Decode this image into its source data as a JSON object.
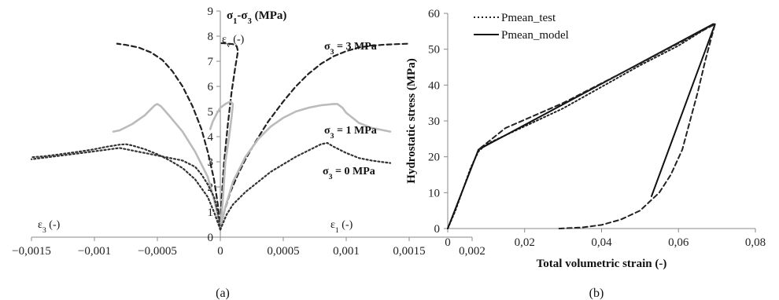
{
  "chart_data": [
    {
      "type": "line",
      "panel_label": "(a)",
      "title": "",
      "ylabel": "σ1-σ3 (MPa)",
      "xlim": [
        -0.0015,
        0.002
      ],
      "ylim": [
        0,
        9
      ],
      "x_ticks": [
        "−0,0015",
        "−0,001",
        "−0,0005",
        "0",
        "0,0005",
        "0,001",
        "0,0015",
        "0,002"
      ],
      "y_ticks": [
        "0",
        "1",
        "2",
        "3",
        "4",
        "5",
        "6",
        "7",
        "8",
        "9"
      ],
      "grid": false,
      "axis_labels": {
        "eps3": "ε3 (-)",
        "eps1": "ε1 (-)",
        "epsv": "εv (-)"
      },
      "series": [
        {
          "name": "σ3 = 3 MPa",
          "color": "#222222",
          "dash": "dashed",
          "branches": [
            {
              "x": [
                0,
                3e-05,
                8e-05,
                0.00014,
                0.0002,
                0.00028,
                0.00038,
                0.0005,
                0.0006,
                0.0007,
                0.0008,
                0.0009,
                0.001,
                0.0011,
                0.0012,
                0.0013,
                0.0014,
                0.0015
              ],
              "y": [
                0.3,
                1.0,
                1.8,
                2.5,
                3.1,
                3.8,
                4.6,
                5.4,
                6.0,
                6.5,
                6.9,
                7.2,
                7.4,
                7.55,
                7.62,
                7.66,
                7.68,
                7.7
              ]
            },
            {
              "x": [
                0,
                -2e-05,
                -5e-05,
                -0.0001,
                -0.00015,
                -0.00022,
                -0.0003,
                -0.00038,
                -0.00046,
                -0.00055,
                -0.00065,
                -0.00075,
                -0.00082
              ],
              "y": [
                0.3,
                1.3,
                2.3,
                3.4,
                4.3,
                5.2,
                6.0,
                6.6,
                7.05,
                7.35,
                7.55,
                7.65,
                7.7
              ]
            },
            {
              "x": [
                0,
                1e-05,
                3e-05,
                6e-05,
                9e-05,
                0.00012,
                0.00014,
                0.00013,
                0.0001,
                6e-05,
                3e-05,
                1e-05
              ],
              "y": [
                0.3,
                1.5,
                3.0,
                4.5,
                5.8,
                6.8,
                7.4,
                7.6,
                7.68,
                7.7,
                7.72,
                7.72
              ]
            }
          ]
        },
        {
          "name": "σ3 = 1 MPa",
          "color": "#bbbbbb",
          "dash": "solid",
          "branches": [
            {
              "x": [
                0,
                4e-05,
                0.0001,
                0.0002,
                0.0003,
                0.0004,
                0.0005,
                0.0006,
                0.0007,
                0.0008,
                0.0009,
                0.00093,
                0.00097,
                0.001,
                0.00105,
                0.0011,
                0.0012,
                0.0013,
                0.00135
              ],
              "y": [
                0.3,
                1.2,
                2.2,
                3.2,
                3.9,
                4.4,
                4.75,
                5.0,
                5.15,
                5.25,
                5.3,
                5.3,
                5.15,
                4.95,
                4.75,
                4.55,
                4.35,
                4.25,
                4.2
              ]
            },
            {
              "x": [
                0,
                -4e-05,
                -0.0001,
                -0.0002,
                -0.0003,
                -0.0004,
                -0.00047,
                -0.0005,
                -0.00052,
                -0.00055,
                -0.0006,
                -0.0007,
                -0.0008,
                -0.00085
              ],
              "y": [
                0.3,
                1.3,
                2.4,
                3.4,
                4.2,
                4.8,
                5.2,
                5.3,
                5.25,
                5.1,
                4.85,
                4.5,
                4.25,
                4.2
              ]
            },
            {
              "x": [
                0,
                2e-05,
                4e-05,
                7e-05,
                9e-05,
                0.0001,
                8e-05,
                4e-05,
                0.0,
                -3e-05,
                -6e-05,
                -8e-05
              ],
              "y": [
                0.3,
                1.5,
                3.0,
                4.0,
                4.8,
                5.3,
                5.4,
                5.3,
                5.15,
                4.9,
                4.6,
                4.3
              ]
            }
          ]
        },
        {
          "name": "σ3 = 0 MPa",
          "color": "#333333",
          "dash": "dotted",
          "branches": [
            {
              "x": [
                0,
                5e-05,
                0.0001,
                0.0002,
                0.0003,
                0.0004,
                0.0005,
                0.0006,
                0.0007,
                0.0008,
                0.00085,
                0.0009,
                0.001,
                0.0011,
                0.0012,
                0.0013,
                0.00135
              ],
              "y": [
                0.3,
                0.9,
                1.3,
                1.8,
                2.2,
                2.6,
                2.9,
                3.2,
                3.45,
                3.7,
                3.75,
                3.6,
                3.35,
                3.15,
                3.05,
                2.98,
                2.95
              ]
            },
            {
              "x": [
                0,
                -5e-05,
                -0.0001,
                -0.0002,
                -0.0003,
                -0.0004,
                -0.0005,
                -0.0006,
                -0.0007,
                -0.00075,
                -0.0008,
                -0.0009,
                -0.001,
                -0.0011,
                -0.0012,
                -0.0013,
                -0.0014,
                -0.0015
              ],
              "y": [
                0.3,
                1.0,
                1.6,
                2.3,
                2.75,
                3.05,
                3.3,
                3.5,
                3.65,
                3.7,
                3.68,
                3.6,
                3.5,
                3.42,
                3.35,
                3.28,
                3.22,
                3.18
              ]
            },
            {
              "x": [
                0,
                -2e-05,
                -5e-05,
                -0.0001,
                -0.00015,
                -0.0002,
                -0.0003,
                -0.0005,
                -0.0008,
                -0.0011,
                -0.0015
              ],
              "y": [
                0.3,
                1.0,
                1.6,
                2.1,
                2.5,
                2.8,
                3.05,
                3.25,
                3.55,
                3.35,
                3.1
              ]
            }
          ]
        }
      ],
      "annotations": [
        {
          "text": "σ3 = 3 MPa",
          "x": 0.00165,
          "y": 7.6
        },
        {
          "text": "σ3 = 1 MPa",
          "x": 0.00165,
          "y": 4.2
        },
        {
          "text": "σ3 = 0 MPa",
          "x": 0.00165,
          "y": 2.8
        }
      ]
    },
    {
      "type": "line",
      "panel_label": "(b)",
      "title": "",
      "xlabel": "Total volumetric strain (-)",
      "ylabel": "Hydrostatic stress (MPa)",
      "xlim": [
        0,
        0.08
      ],
      "ylim": [
        0,
        60
      ],
      "x_ticks": [
        "0",
        "0,02",
        "0,04",
        "0,06",
        "0,08"
      ],
      "y_ticks": [
        "0",
        "10",
        "20",
        "30",
        "40",
        "50",
        "60"
      ],
      "grid": false,
      "legend_position": "top-left",
      "series": [
        {
          "name": "Pmean_test",
          "color": "#222222",
          "dash": "dotted",
          "x": [
            0,
            0.002,
            0.004,
            0.006,
            0.008,
            0.01,
            0.02,
            0.03,
            0.04,
            0.05,
            0.06,
            0.069
          ],
          "y": [
            0,
            5,
            11,
            17,
            21.5,
            23.5,
            28.5,
            33.5,
            39.5,
            45.5,
            51,
            57
          ]
        },
        {
          "name": "Pmean_model",
          "color": "#111111",
          "dash": "solid",
          "x": [
            0,
            0.008,
            0.069,
            0.0695,
            0.053
          ],
          "y": [
            0,
            22,
            57,
            57,
            9
          ]
        },
        {
          "name": "",
          "color": "#222222",
          "dash": "dashed",
          "x": [
            0.029,
            0.035,
            0.04,
            0.045,
            0.05,
            0.055,
            0.058,
            0.061,
            0.063,
            0.065,
            0.067,
            0.069,
            0.0695,
            0.05,
            0.03,
            0.015,
            0.008
          ],
          "y": [
            0,
            0.3,
            1.0,
            2.5,
            5,
            10,
            15,
            22,
            30,
            38,
            47,
            55,
            57,
            46,
            35,
            28,
            22
          ]
        }
      ]
    }
  ]
}
